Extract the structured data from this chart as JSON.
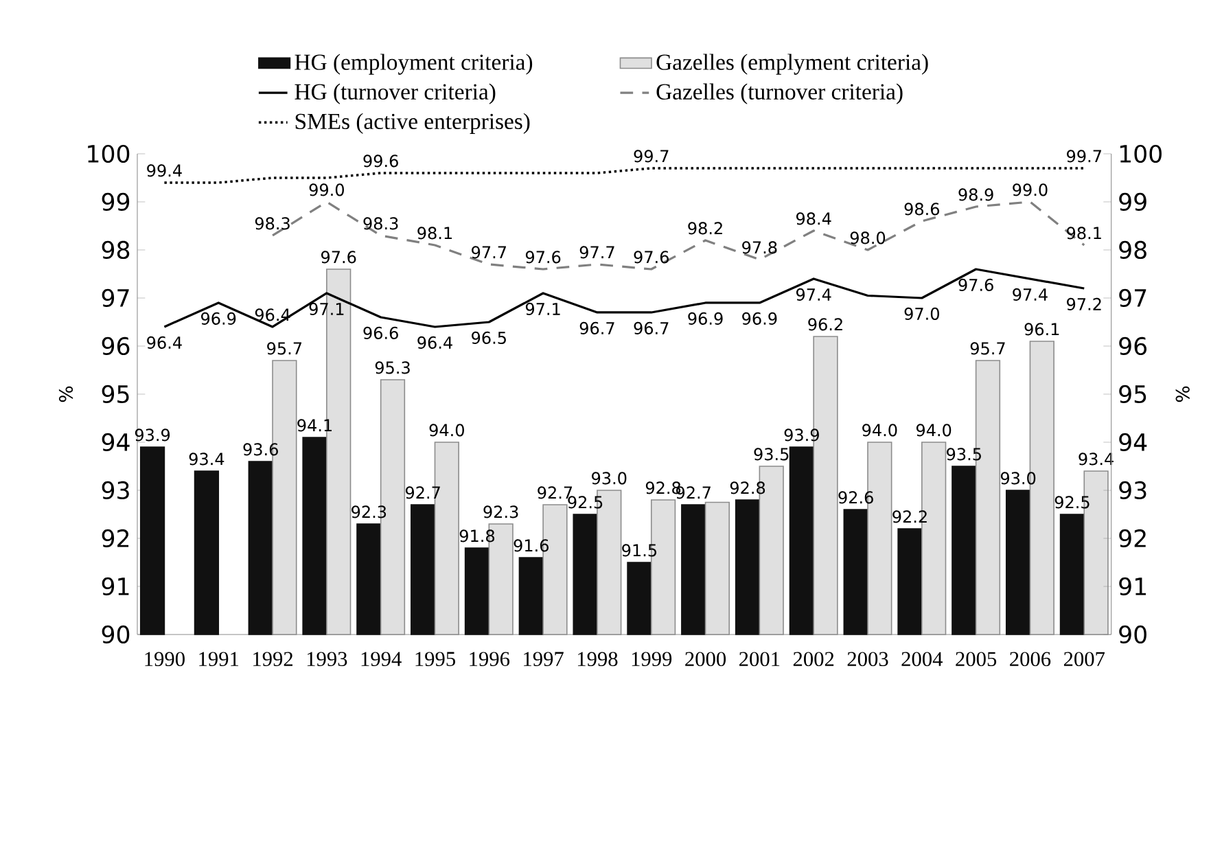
{
  "chart_data": {
    "type": "bar",
    "categories": [
      "1990",
      "1991",
      "1992",
      "1993",
      "1994",
      "1995",
      "1996",
      "1997",
      "1998",
      "1999",
      "2000",
      "2001",
      "2002",
      "2003",
      "2004",
      "2005",
      "2006",
      "2007"
    ],
    "ylabel": "%",
    "y2label": "%",
    "ylim": [
      90,
      100
    ],
    "yticks": [
      90,
      91,
      92,
      93,
      94,
      95,
      96,
      97,
      98,
      99,
      100
    ],
    "y2lim": [
      90,
      100
    ],
    "y2ticks": [
      90,
      91,
      92,
      93,
      94,
      95,
      96,
      97,
      98,
      99,
      100
    ],
    "legend": "top",
    "series": [
      {
        "name": "HG (employment criteria)",
        "color": "#111111",
        "values": [
          93.9,
          93.4,
          93.6,
          94.1,
          92.3,
          92.7,
          91.8,
          91.6,
          92.5,
          91.5,
          92.7,
          92.8,
          93.9,
          92.6,
          92.2,
          93.5,
          93.0,
          92.5
        ],
        "value_labels": [
          "93.9",
          "93.4",
          "93.6",
          "94.1",
          "92.3",
          "92.7",
          "91.8",
          "91.6",
          "92.5",
          "91.5",
          "92.7",
          "92.8",
          "93.9",
          "92.6",
          "92.2",
          "93.5",
          "93.0",
          "92.5"
        ]
      },
      {
        "name": "Gazelles (emplyment criteria)",
        "color": "#e0e0e0",
        "values": [
          null,
          null,
          95.7,
          97.6,
          95.3,
          94.0,
          92.3,
          92.7,
          93.0,
          92.8,
          92.75,
          93.5,
          96.2,
          94.0,
          94.0,
          95.7,
          96.1,
          93.4
        ],
        "value_labels": [
          null,
          null,
          "95.7",
          "97.6",
          "95.3",
          "94.0",
          "92.3",
          "92.7",
          "93.0",
          "92.8",
          null,
          "93.5",
          "96.2",
          "94.0",
          "94.0",
          "95.7",
          "96.1",
          "93.4"
        ]
      },
      {
        "type": "line",
        "name": "HG (turnover criteria)",
        "color": "#000000",
        "line_style": "solid",
        "values": [
          96.4,
          96.9,
          96.4,
          97.1,
          96.6,
          96.4,
          96.5,
          97.1,
          96.7,
          96.7,
          96.9,
          96.9,
          97.4,
          97.05,
          97.0,
          97.6,
          97.4,
          97.2
        ],
        "value_labels": [
          "96.4",
          "96.9",
          "96.4",
          "97.1",
          "96.6",
          "96.4",
          "96.5",
          "97.1",
          "96.7",
          "96.7",
          "96.9",
          "96.9",
          "97.4",
          null,
          "97.0",
          "97.6",
          "97.4",
          "97.2"
        ]
      },
      {
        "type": "line",
        "name": "Gazelles (turnover criteria)",
        "color": "#808080",
        "line_style": "dashed",
        "values": [
          null,
          null,
          98.3,
          99.0,
          98.3,
          98.1,
          97.7,
          97.6,
          97.7,
          97.6,
          98.2,
          97.8,
          98.4,
          98.0,
          98.6,
          98.9,
          99.0,
          98.1
        ],
        "value_labels": [
          null,
          null,
          "98.3",
          "99.0",
          "98.3",
          "98.1",
          "97.7",
          "97.6",
          "97.7",
          "97.6",
          "98.2",
          "97.8",
          "98.4",
          "98.0",
          "98.6",
          "98.9",
          "99.0",
          "98.1"
        ]
      },
      {
        "type": "line",
        "name": "SMEs (active enterprises)",
        "color": "#000000",
        "line_style": "dotted",
        "values": [
          99.4,
          99.4,
          99.5,
          99.5,
          99.6,
          99.6,
          99.6,
          99.6,
          99.6,
          99.7,
          99.7,
          99.7,
          99.7,
          99.7,
          99.7,
          99.7,
          99.7,
          99.7
        ],
        "value_labels": [
          "99.4",
          null,
          null,
          null,
          "99.6",
          null,
          null,
          null,
          null,
          "99.7",
          null,
          null,
          null,
          null,
          null,
          null,
          null,
          "99.7"
        ]
      }
    ]
  }
}
